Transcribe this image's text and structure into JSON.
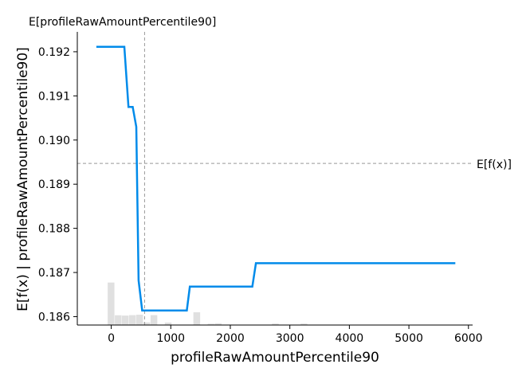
{
  "chart_data": {
    "type": "line",
    "title": "",
    "xlabel": "profileRawAmountPercentile90",
    "ylabel": "E[f(x) | profileRawAmountPercentile90]",
    "xlim": [
      -570,
      6070
    ],
    "ylim": [
      0.18581,
      0.19245
    ],
    "x_ticks": [
      0,
      1000,
      2000,
      3000,
      4000,
      5000,
      6000
    ],
    "x_tick_labels": [
      "0",
      "1000",
      "2000",
      "3000",
      "4000",
      "5000",
      "6000"
    ],
    "y_ticks": [
      0.186,
      0.187,
      0.188,
      0.189,
      0.19,
      0.191,
      0.192
    ],
    "y_tick_labels": [
      "0.186",
      "0.187",
      "0.188",
      "0.189",
      "0.190",
      "0.191",
      "0.192"
    ],
    "series": [
      {
        "color": "#008bea",
        "x": [
          -250,
          220,
          290,
          360,
          420,
          460,
          520,
          1270,
          1320,
          2370,
          2430,
          5780
        ],
        "y": [
          0.19211,
          0.19211,
          0.19075,
          0.19075,
          0.1903,
          0.18682,
          0.18614,
          0.18614,
          0.18668,
          0.18668,
          0.18721,
          0.18721
        ]
      }
    ],
    "histogram": {
      "color": "#e0e0e0",
      "bin_width": 120,
      "bins": [
        {
          "x": 0,
          "height": 0.145
        },
        {
          "x": 120,
          "height": 0.0333
        },
        {
          "x": 240,
          "height": 0.0322
        },
        {
          "x": 360,
          "height": 0.0337
        },
        {
          "x": 480,
          "height": 0.0351
        },
        {
          "x": 600,
          "height": 0.0089
        },
        {
          "x": 720,
          "height": 0.0338
        },
        {
          "x": 960,
          "height": 0.0084
        },
        {
          "x": 1440,
          "height": 0.0436
        },
        {
          "x": 1680,
          "height": 0.0045
        },
        {
          "x": 1800,
          "height": 0.006
        },
        {
          "x": 2760,
          "height": 0.005
        },
        {
          "x": 3240,
          "height": 0.005
        }
      ]
    },
    "reference_lines": {
      "vertical": {
        "x": 560,
        "label": "E[profileRawAmountPercentile90]"
      },
      "horizontal": {
        "y": 0.18947,
        "label": "E[f(x)]"
      }
    },
    "grid": false,
    "legend": "none"
  }
}
